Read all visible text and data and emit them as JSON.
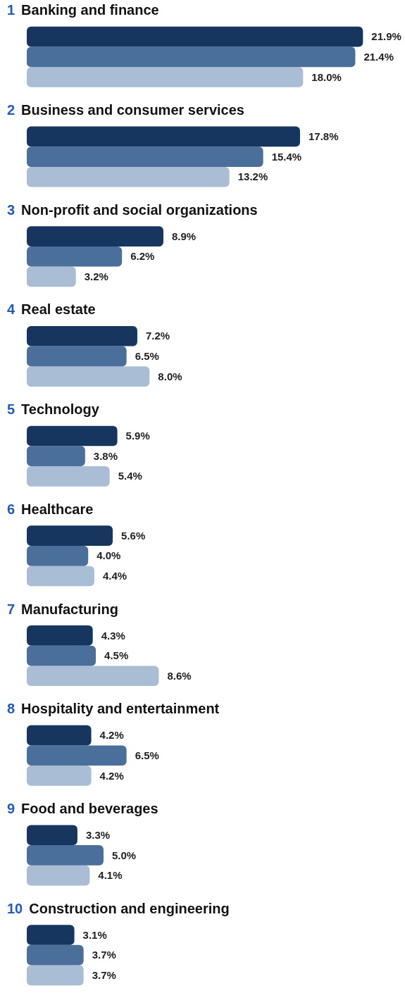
{
  "chart_data": {
    "type": "bar",
    "orientation": "horizontal",
    "legend": false,
    "grid": false,
    "tick_labels": "y",
    "categories": [
      "1 Banking and finance",
      "2 Business and consumer services",
      "3 Non-profit and social organizations",
      "4 Real estate",
      "5 Technology",
      "6 Healthcare",
      "7 Manufacturing",
      "8 Hospitality and entertainment",
      "9 Food and beverages",
      "10 Construction and engineering"
    ],
    "series": [
      {
        "color": "#17365f",
        "values": [
          21.9,
          17.8,
          8.9,
          7.2,
          5.9,
          5.6,
          4.3,
          4.2,
          3.3,
          3.1
        ],
        "value_labels": [
          "21.9%",
          "17.8%",
          "8.9%",
          "7.2%",
          "5.9%",
          "5.6%",
          "4.3%",
          "4.2%",
          "3.3%",
          "3.1%"
        ]
      },
      {
        "color": "#4a6f9a",
        "values": [
          21.4,
          15.4,
          6.2,
          6.5,
          3.8,
          4.0,
          4.5,
          6.5,
          5.0,
          3.7
        ],
        "value_labels": [
          "21.4%",
          "15.4%",
          "6.2%",
          "6.5%",
          "3.8%",
          "4.0%",
          "4.5%",
          "6.5%",
          "5.0%",
          "3.7%"
        ]
      },
      {
        "color": "#a9bdd4",
        "values": [
          18.0,
          13.2,
          3.2,
          8.0,
          5.4,
          4.4,
          8.6,
          4.2,
          4.1,
          3.7
        ],
        "value_labels": [
          "18.0%",
          "13.2%",
          "3.2%",
          "8.0%",
          "5.4%",
          "4.4%",
          "8.6%",
          "4.2%",
          "4.1%",
          "3.7%"
        ]
      }
    ]
  }
}
